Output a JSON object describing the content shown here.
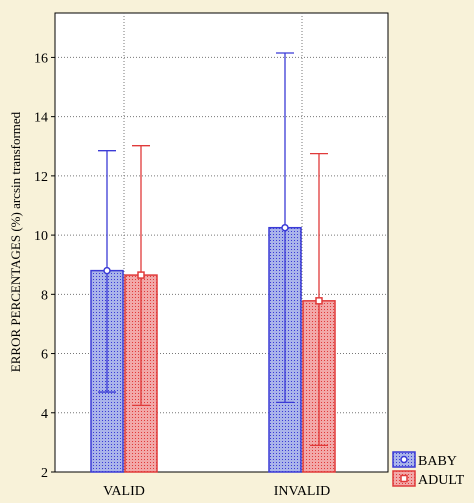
{
  "chart_data": {
    "type": "bar",
    "title": "",
    "xlabel": "",
    "ylabel": "ERROR PERCENTAGES (%) arcsin transformed",
    "categories": [
      "VALID",
      "INVALID"
    ],
    "ylim": [
      2,
      17.5
    ],
    "yticks": [
      2,
      4,
      6,
      8,
      10,
      12,
      14,
      16
    ],
    "grid": true,
    "legend_position": "bottom-right",
    "series": [
      {
        "name": "BABY",
        "color": "#3b3bd6",
        "fill": "#aab4ea",
        "marker": "circle",
        "values": [
          8.8,
          10.25
        ],
        "error_low": [
          4.7,
          4.35
        ],
        "error_high": [
          12.85,
          16.15
        ]
      },
      {
        "name": "ADULT",
        "color": "#e03a3a",
        "fill": "#f2a8a8",
        "marker": "square",
        "values": [
          8.65,
          7.78
        ],
        "error_low": [
          4.25,
          2.9
        ],
        "error_high": [
          13.02,
          12.75
        ]
      }
    ]
  }
}
